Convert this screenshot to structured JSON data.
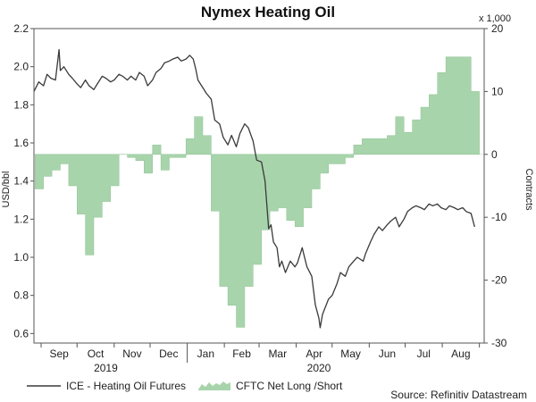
{
  "chart_data": {
    "type": "line",
    "title": "Nymex Heating Oil",
    "y_left_label": "USD/bbl",
    "y_right_label": "Contracts",
    "y_right_unit": "x 1,000",
    "y_left_lim": [
      0.55,
      2.2
    ],
    "y_right_lim": [
      -30,
      20
    ],
    "y_left_ticks": [
      "0.6",
      "0.8",
      "1.0",
      "1.2",
      "1.4",
      "1.6",
      "1.8",
      "2.0",
      "2.2"
    ],
    "y_right_ticks": [
      "-30",
      "-20",
      "-10",
      "0",
      "10",
      "20"
    ],
    "x_month_labels": [
      "Sep",
      "Oct",
      "Nov",
      "Dec",
      "Jan",
      "Feb",
      "Mar",
      "Apr",
      "May",
      "Jun",
      "Jul",
      "Aug"
    ],
    "x_year_labels": [
      "2019",
      "2020"
    ],
    "source": "Source: Refinitiv Datastream",
    "legend_position": "bottom-left",
    "colors": {
      "line": "#3a3a3a",
      "area": "#a8d4ac",
      "area_edge": "#8fc293"
    },
    "series": [
      {
        "name": "ICE - Heating Oil Futures",
        "kind": "line",
        "axis": "left",
        "points": [
          [
            "2019-08-26",
            1.87
          ],
          [
            "2019-08-30",
            1.92
          ],
          [
            "2019-09-03",
            1.9
          ],
          [
            "2019-09-06",
            1.96
          ],
          [
            "2019-09-09",
            1.94
          ],
          [
            "2019-09-13",
            1.93
          ],
          [
            "2019-09-16",
            2.09
          ],
          [
            "2019-09-17",
            1.98
          ],
          [
            "2019-09-20",
            2.0
          ],
          [
            "2019-09-24",
            1.96
          ],
          [
            "2019-09-27",
            1.94
          ],
          [
            "2019-10-01",
            1.91
          ],
          [
            "2019-10-04",
            1.89
          ],
          [
            "2019-10-08",
            1.93
          ],
          [
            "2019-10-11",
            1.9
          ],
          [
            "2019-10-15",
            1.88
          ],
          [
            "2019-10-18",
            1.91
          ],
          [
            "2019-10-22",
            1.95
          ],
          [
            "2019-10-25",
            1.94
          ],
          [
            "2019-10-29",
            1.92
          ],
          [
            "2019-11-01",
            1.93
          ],
          [
            "2019-11-05",
            1.96
          ],
          [
            "2019-11-08",
            1.95
          ],
          [
            "2019-11-12",
            1.93
          ],
          [
            "2019-11-15",
            1.95
          ],
          [
            "2019-11-19",
            1.93
          ],
          [
            "2019-11-22",
            1.97
          ],
          [
            "2019-11-26",
            1.95
          ],
          [
            "2019-11-29",
            1.9
          ],
          [
            "2019-12-03",
            1.93
          ],
          [
            "2019-12-06",
            1.97
          ],
          [
            "2019-12-10",
            1.99
          ],
          [
            "2019-12-13",
            2.02
          ],
          [
            "2019-12-17",
            2.03
          ],
          [
            "2019-12-20",
            2.04
          ],
          [
            "2019-12-24",
            2.05
          ],
          [
            "2019-12-27",
            2.03
          ],
          [
            "2019-12-31",
            2.04
          ],
          [
            "2020-01-03",
            2.06
          ],
          [
            "2020-01-06",
            2.04
          ],
          [
            "2020-01-08",
            1.99
          ],
          [
            "2020-01-10",
            1.93
          ],
          [
            "2020-01-14",
            1.89
          ],
          [
            "2020-01-17",
            1.86
          ],
          [
            "2020-01-21",
            1.83
          ],
          [
            "2020-01-24",
            1.72
          ],
          [
            "2020-01-28",
            1.7
          ],
          [
            "2020-01-31",
            1.63
          ],
          [
            "2020-02-04",
            1.59
          ],
          [
            "2020-02-07",
            1.64
          ],
          [
            "2020-02-11",
            1.58
          ],
          [
            "2020-02-14",
            1.65
          ],
          [
            "2020-02-18",
            1.7
          ],
          [
            "2020-02-21",
            1.68
          ],
          [
            "2020-02-25",
            1.61
          ],
          [
            "2020-02-28",
            1.51
          ],
          [
            "2020-03-03",
            1.5
          ],
          [
            "2020-03-06",
            1.4
          ],
          [
            "2020-03-09",
            1.15
          ],
          [
            "2020-03-11",
            1.17
          ],
          [
            "2020-03-13",
            1.08
          ],
          [
            "2020-03-16",
            1.05
          ],
          [
            "2020-03-18",
            0.95
          ],
          [
            "2020-03-20",
            0.98
          ],
          [
            "2020-03-23",
            0.92
          ],
          [
            "2020-03-25",
            0.95
          ],
          [
            "2020-03-27",
            0.98
          ],
          [
            "2020-03-31",
            0.95
          ],
          [
            "2020-04-02",
            0.97
          ],
          [
            "2020-04-06",
            1.05
          ],
          [
            "2020-04-08",
            1.0
          ],
          [
            "2020-04-10",
            0.95
          ],
          [
            "2020-04-14",
            0.9
          ],
          [
            "2020-04-17",
            0.75
          ],
          [
            "2020-04-20",
            0.68
          ],
          [
            "2020-04-21",
            0.63
          ],
          [
            "2020-04-23",
            0.7
          ],
          [
            "2020-04-28",
            0.78
          ],
          [
            "2020-05-01",
            0.8
          ],
          [
            "2020-05-05",
            0.86
          ],
          [
            "2020-05-08",
            0.92
          ],
          [
            "2020-05-12",
            0.9
          ],
          [
            "2020-05-15",
            0.95
          ],
          [
            "2020-05-19",
            0.98
          ],
          [
            "2020-05-22",
            1.0
          ],
          [
            "2020-05-27",
            0.98
          ],
          [
            "2020-05-29",
            1.02
          ],
          [
            "2020-06-02",
            1.08
          ],
          [
            "2020-06-05",
            1.12
          ],
          [
            "2020-06-09",
            1.16
          ],
          [
            "2020-06-12",
            1.14
          ],
          [
            "2020-06-16",
            1.17
          ],
          [
            "2020-06-19",
            1.19
          ],
          [
            "2020-06-23",
            1.21
          ],
          [
            "2020-06-26",
            1.16
          ],
          [
            "2020-06-30",
            1.2
          ],
          [
            "2020-07-03",
            1.24
          ],
          [
            "2020-07-07",
            1.26
          ],
          [
            "2020-07-10",
            1.27
          ],
          [
            "2020-07-14",
            1.26
          ],
          [
            "2020-07-17",
            1.25
          ],
          [
            "2020-07-21",
            1.28
          ],
          [
            "2020-07-24",
            1.27
          ],
          [
            "2020-07-28",
            1.28
          ],
          [
            "2020-07-31",
            1.26
          ],
          [
            "2020-08-04",
            1.25
          ],
          [
            "2020-08-07",
            1.27
          ],
          [
            "2020-08-11",
            1.26
          ],
          [
            "2020-08-14",
            1.25
          ],
          [
            "2020-08-18",
            1.26
          ],
          [
            "2020-08-21",
            1.24
          ],
          [
            "2020-08-25",
            1.23
          ],
          [
            "2020-08-28",
            1.16
          ]
        ]
      },
      {
        "name": "CFTC Net Long /Short",
        "kind": "area",
        "axis": "right",
        "points": [
          [
            "2019-08-27",
            -5.5
          ],
          [
            "2019-09-03",
            -3.5
          ],
          [
            "2019-09-10",
            -2.5
          ],
          [
            "2019-09-17",
            -1.5
          ],
          [
            "2019-09-24",
            -5.0
          ],
          [
            "2019-10-01",
            -9.5
          ],
          [
            "2019-10-08",
            -16.0
          ],
          [
            "2019-10-15",
            -10.0
          ],
          [
            "2019-10-22",
            -7.5
          ],
          [
            "2019-10-29",
            -5.0
          ],
          [
            "2019-11-05",
            0.0
          ],
          [
            "2019-11-12",
            -0.5
          ],
          [
            "2019-11-19",
            -1.0
          ],
          [
            "2019-11-26",
            -3.0
          ],
          [
            "2019-12-03",
            1.5
          ],
          [
            "2019-12-10",
            -2.5
          ],
          [
            "2019-12-17",
            -0.5
          ],
          [
            "2019-12-24",
            -0.5
          ],
          [
            "2019-12-31",
            2.5
          ],
          [
            "2020-01-07",
            6.0
          ],
          [
            "2020-01-14",
            3.0
          ],
          [
            "2020-01-21",
            -9.0
          ],
          [
            "2020-01-28",
            -21.0
          ],
          [
            "2020-02-04",
            -24.0
          ],
          [
            "2020-02-11",
            -27.5
          ],
          [
            "2020-02-18",
            -21.0
          ],
          [
            "2020-02-25",
            -17.5
          ],
          [
            "2020-03-03",
            -12.0
          ],
          [
            "2020-03-10",
            -9.0
          ],
          [
            "2020-03-17",
            -8.5
          ],
          [
            "2020-03-24",
            -10.5
          ],
          [
            "2020-03-31",
            -11.5
          ],
          [
            "2020-04-07",
            -8.5
          ],
          [
            "2020-04-14",
            -5.5
          ],
          [
            "2020-04-21",
            -3.0
          ],
          [
            "2020-04-28",
            -1.5
          ],
          [
            "2020-05-05",
            -1.5
          ],
          [
            "2020-05-12",
            -0.5
          ],
          [
            "2020-05-19",
            1.5
          ],
          [
            "2020-05-26",
            2.5
          ],
          [
            "2020-06-02",
            2.5
          ],
          [
            "2020-06-09",
            2.5
          ],
          [
            "2020-06-16",
            3.0
          ],
          [
            "2020-06-23",
            6.0
          ],
          [
            "2020-06-30",
            3.5
          ],
          [
            "2020-07-07",
            5.5
          ],
          [
            "2020-07-14",
            7.5
          ],
          [
            "2020-07-21",
            9.5
          ],
          [
            "2020-07-28",
            13.0
          ],
          [
            "2020-08-04",
            15.5
          ],
          [
            "2020-08-11",
            15.5
          ],
          [
            "2020-08-18",
            15.5
          ],
          [
            "2020-08-25",
            10.0
          ],
          [
            "2020-09-01",
            10.0
          ]
        ]
      }
    ]
  }
}
